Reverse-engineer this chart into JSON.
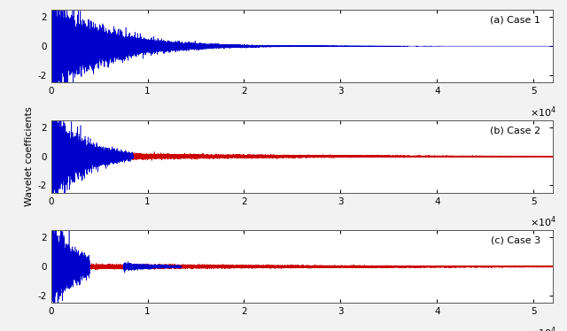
{
  "n_points": 52000,
  "xlim": [
    0,
    52000
  ],
  "ylim": [
    -2.5,
    2.5
  ],
  "yticks": [
    -2,
    0,
    2
  ],
  "xticks": [
    0,
    10000,
    20000,
    30000,
    40000,
    50000
  ],
  "xtick_labels": [
    "0",
    "1",
    "2",
    "3",
    "4",
    "5"
  ],
  "ytick_labels": [
    "-2",
    "0",
    "2"
  ],
  "xlabel_scale": "\\times10^4",
  "ylabel": "Wavelet coefficients",
  "case1_label": "(a) Case 1",
  "case2_label": "(b) Case 2",
  "case3_label": "(c) Case 3",
  "blue_color": "#0000cc",
  "red_color": "#cc0000",
  "case1_blue_end": 52000,
  "case2_blue_end": 8500,
  "case3_blue_end": 4000,
  "case3_extra_blue_start": 7500,
  "case3_extra_blue_end": 13500,
  "decay_rate1": 0.00018,
  "decay_rate2": 0.0003,
  "decay_rate3": 0.0004,
  "red_decay2": 4.5e-05,
  "red_decay3": 3e-05,
  "amplitude1": 1.3,
  "amplitude2": 1.3,
  "amplitude3": 1.3,
  "red_amp2": 0.12,
  "red_amp3": 0.08,
  "fig_width": 6.4,
  "fig_height": 3.74,
  "dpi": 100,
  "background_color": "#f2f2f2",
  "axes_background": "#ffffff",
  "lw": 0.4
}
